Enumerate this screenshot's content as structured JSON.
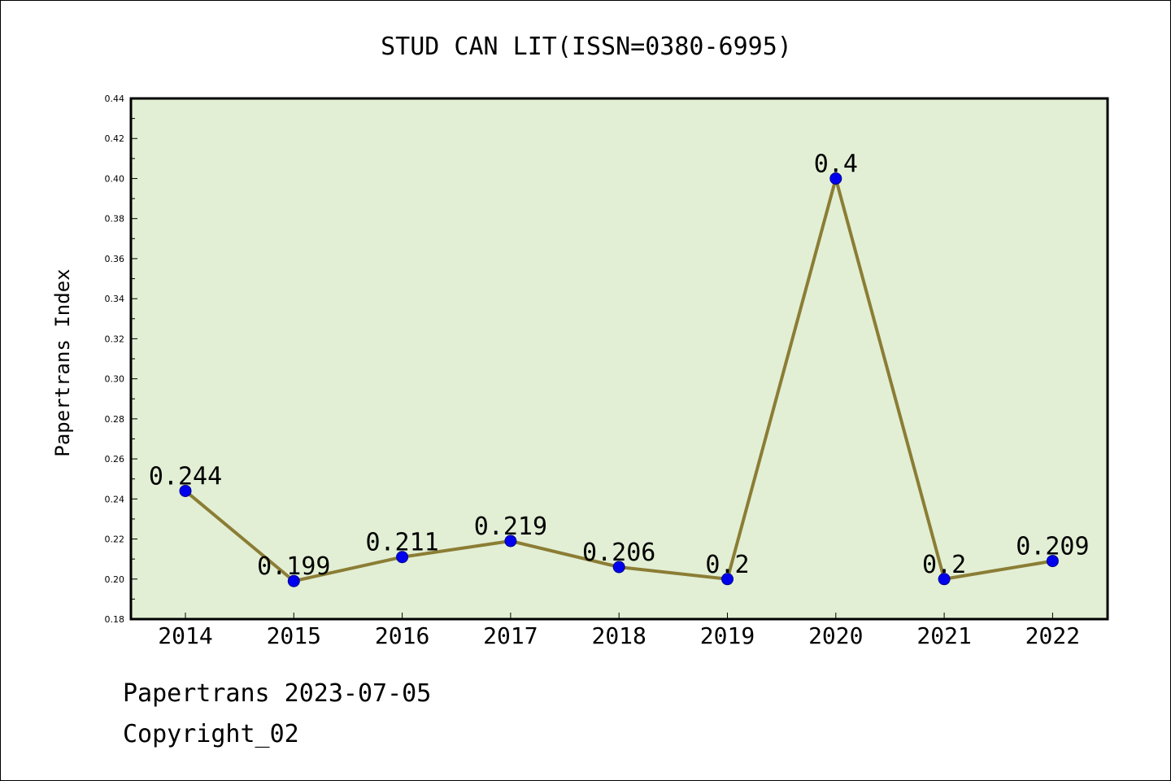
{
  "chart_data": {
    "type": "line",
    "title": "STUD CAN LIT(ISSN=0380-6995)",
    "xlabel": "",
    "ylabel": "Papertrans Index",
    "categories": [
      "2014",
      "2015",
      "2016",
      "2017",
      "2018",
      "2019",
      "2020",
      "2021",
      "2022"
    ],
    "values": [
      0.244,
      0.199,
      0.211,
      0.219,
      0.206,
      0.2,
      0.4,
      0.2,
      0.209
    ],
    "data_labels": [
      "0.244",
      "0.199",
      "0.211",
      "0.219",
      "0.206",
      "0.2",
      "0.4",
      "0.2",
      "0.209"
    ],
    "ylim": [
      0.18,
      0.44
    ],
    "yticks": [
      "0.18",
      "0.20",
      "0.22",
      "0.24",
      "0.26",
      "0.28",
      "0.30",
      "0.32",
      "0.34",
      "0.36",
      "0.38",
      "0.40",
      "0.42",
      "0.44"
    ],
    "grid": false,
    "colors": {
      "plot_background": "#e2efd4",
      "line": "#8b7d35",
      "marker": "#0000ee",
      "marker_edge": "#00008b"
    }
  },
  "footer": {
    "date_line": "Papertrans 2023-07-05",
    "copyright": "Copyright_02"
  }
}
